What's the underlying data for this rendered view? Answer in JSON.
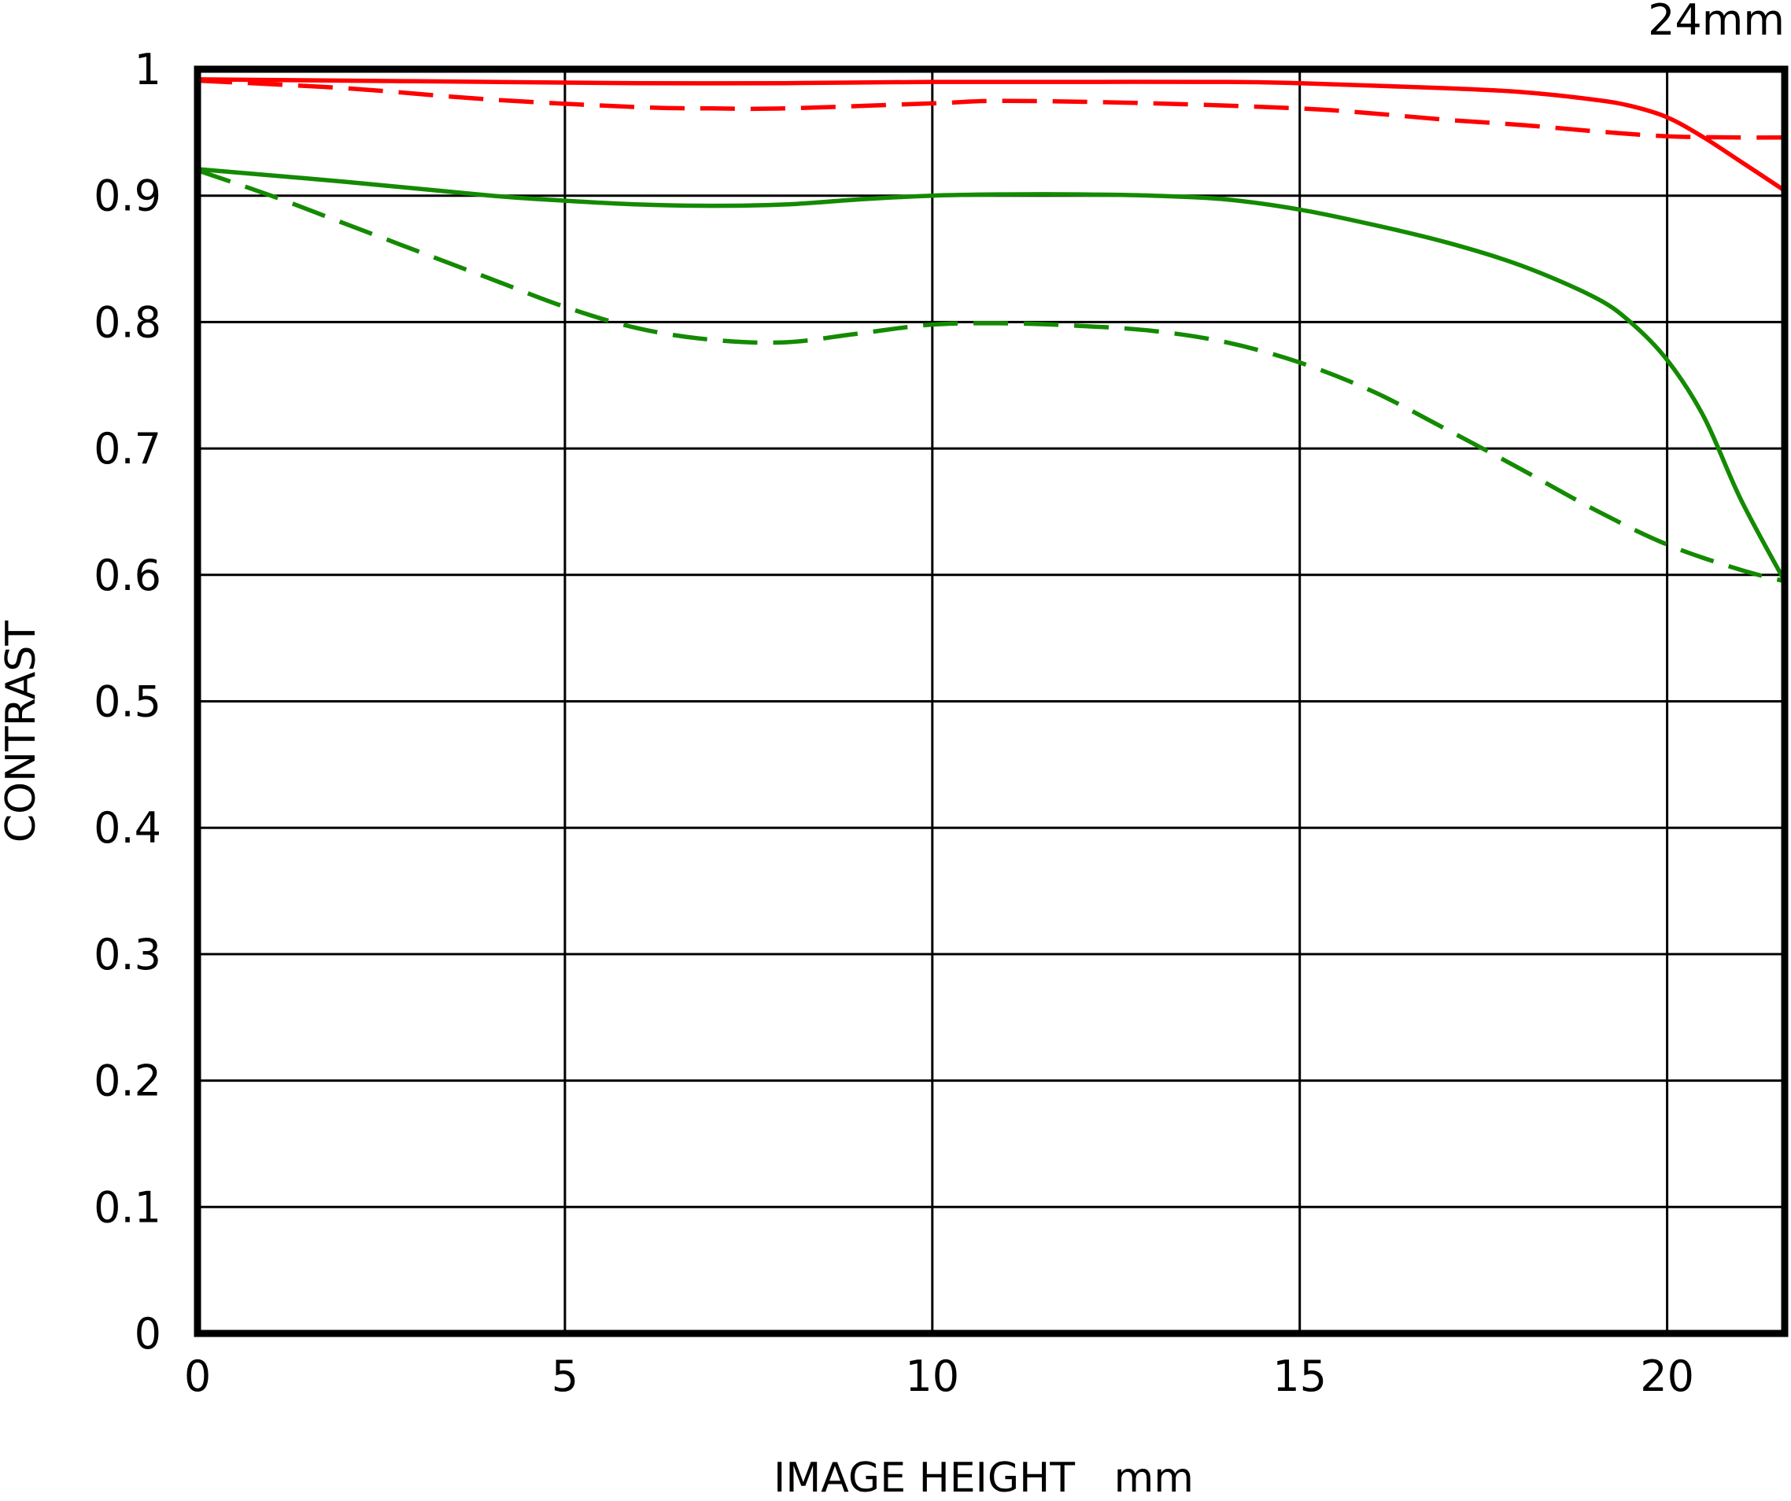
{
  "chart_data": {
    "type": "line",
    "title": "24mm",
    "xlabel": "IMAGE HEIGHT   mm",
    "ylabel": "CONTRAST",
    "xlim": [
      0,
      21.6
    ],
    "ylim": [
      0,
      1
    ],
    "xticks": [
      0,
      5,
      10,
      15,
      20
    ],
    "yticks": [
      0,
      0.1,
      0.2,
      0.3,
      0.4,
      0.5,
      0.6,
      0.7,
      0.8,
      0.9,
      1
    ],
    "xtick_labels": [
      "0",
      "5",
      "10",
      "15",
      "20"
    ],
    "ytick_labels": [
      "0",
      "0.1",
      "0.2",
      "0.3",
      "0.4",
      "0.5",
      "0.6",
      "0.7",
      "0.8",
      "0.9",
      "1"
    ],
    "grid": true,
    "legend": "none",
    "series": [
      {
        "color": "#ff0000",
        "dash": "solid",
        "x": [
          0,
          2,
          4,
          6,
          8,
          10,
          12,
          14,
          15,
          16,
          17,
          18,
          19,
          19.5,
          20,
          20.5,
          21,
          21.6
        ],
        "y": [
          0.992,
          0.991,
          0.99,
          0.989,
          0.989,
          0.99,
          0.99,
          0.99,
          0.989,
          0.987,
          0.985,
          0.982,
          0.976,
          0.971,
          0.962,
          0.946,
          0.927,
          0.904
        ]
      },
      {
        "color": "#ff0000",
        "dash": "dashed",
        "x": [
          0,
          2,
          4,
          6,
          7,
          8,
          10,
          11,
          13,
          15,
          16,
          17,
          18,
          19,
          20,
          21,
          21.6
        ],
        "y": [
          0.991,
          0.985,
          0.976,
          0.97,
          0.969,
          0.969,
          0.973,
          0.975,
          0.973,
          0.969,
          0.965,
          0.96,
          0.956,
          0.951,
          0.947,
          0.946,
          0.946
        ]
      },
      {
        "color": "#138a00",
        "dash": "solid",
        "x": [
          0,
          2,
          4,
          5,
          6,
          7,
          8,
          9,
          10,
          11,
          12,
          13,
          14,
          15,
          16,
          17,
          18,
          19,
          19.5,
          20,
          20.5,
          21,
          21.6
        ],
        "y": [
          0.921,
          0.911,
          0.9,
          0.896,
          0.893,
          0.892,
          0.893,
          0.897,
          0.9,
          0.901,
          0.901,
          0.9,
          0.897,
          0.889,
          0.877,
          0.863,
          0.845,
          0.82,
          0.8,
          0.77,
          0.725,
          0.66,
          0.595
        ]
      },
      {
        "color": "#138a00",
        "dash": "dashed",
        "x": [
          0,
          1,
          2,
          3,
          4,
          5,
          6,
          7,
          8,
          9,
          10,
          11,
          12,
          13,
          14,
          15,
          16,
          17,
          18,
          19,
          20,
          21,
          21.6
        ],
        "y": [
          0.92,
          0.9,
          0.878,
          0.856,
          0.834,
          0.812,
          0.795,
          0.786,
          0.784,
          0.791,
          0.798,
          0.799,
          0.797,
          0.793,
          0.784,
          0.768,
          0.745,
          0.715,
          0.684,
          0.652,
          0.624,
          0.604,
          0.595
        ]
      }
    ]
  }
}
